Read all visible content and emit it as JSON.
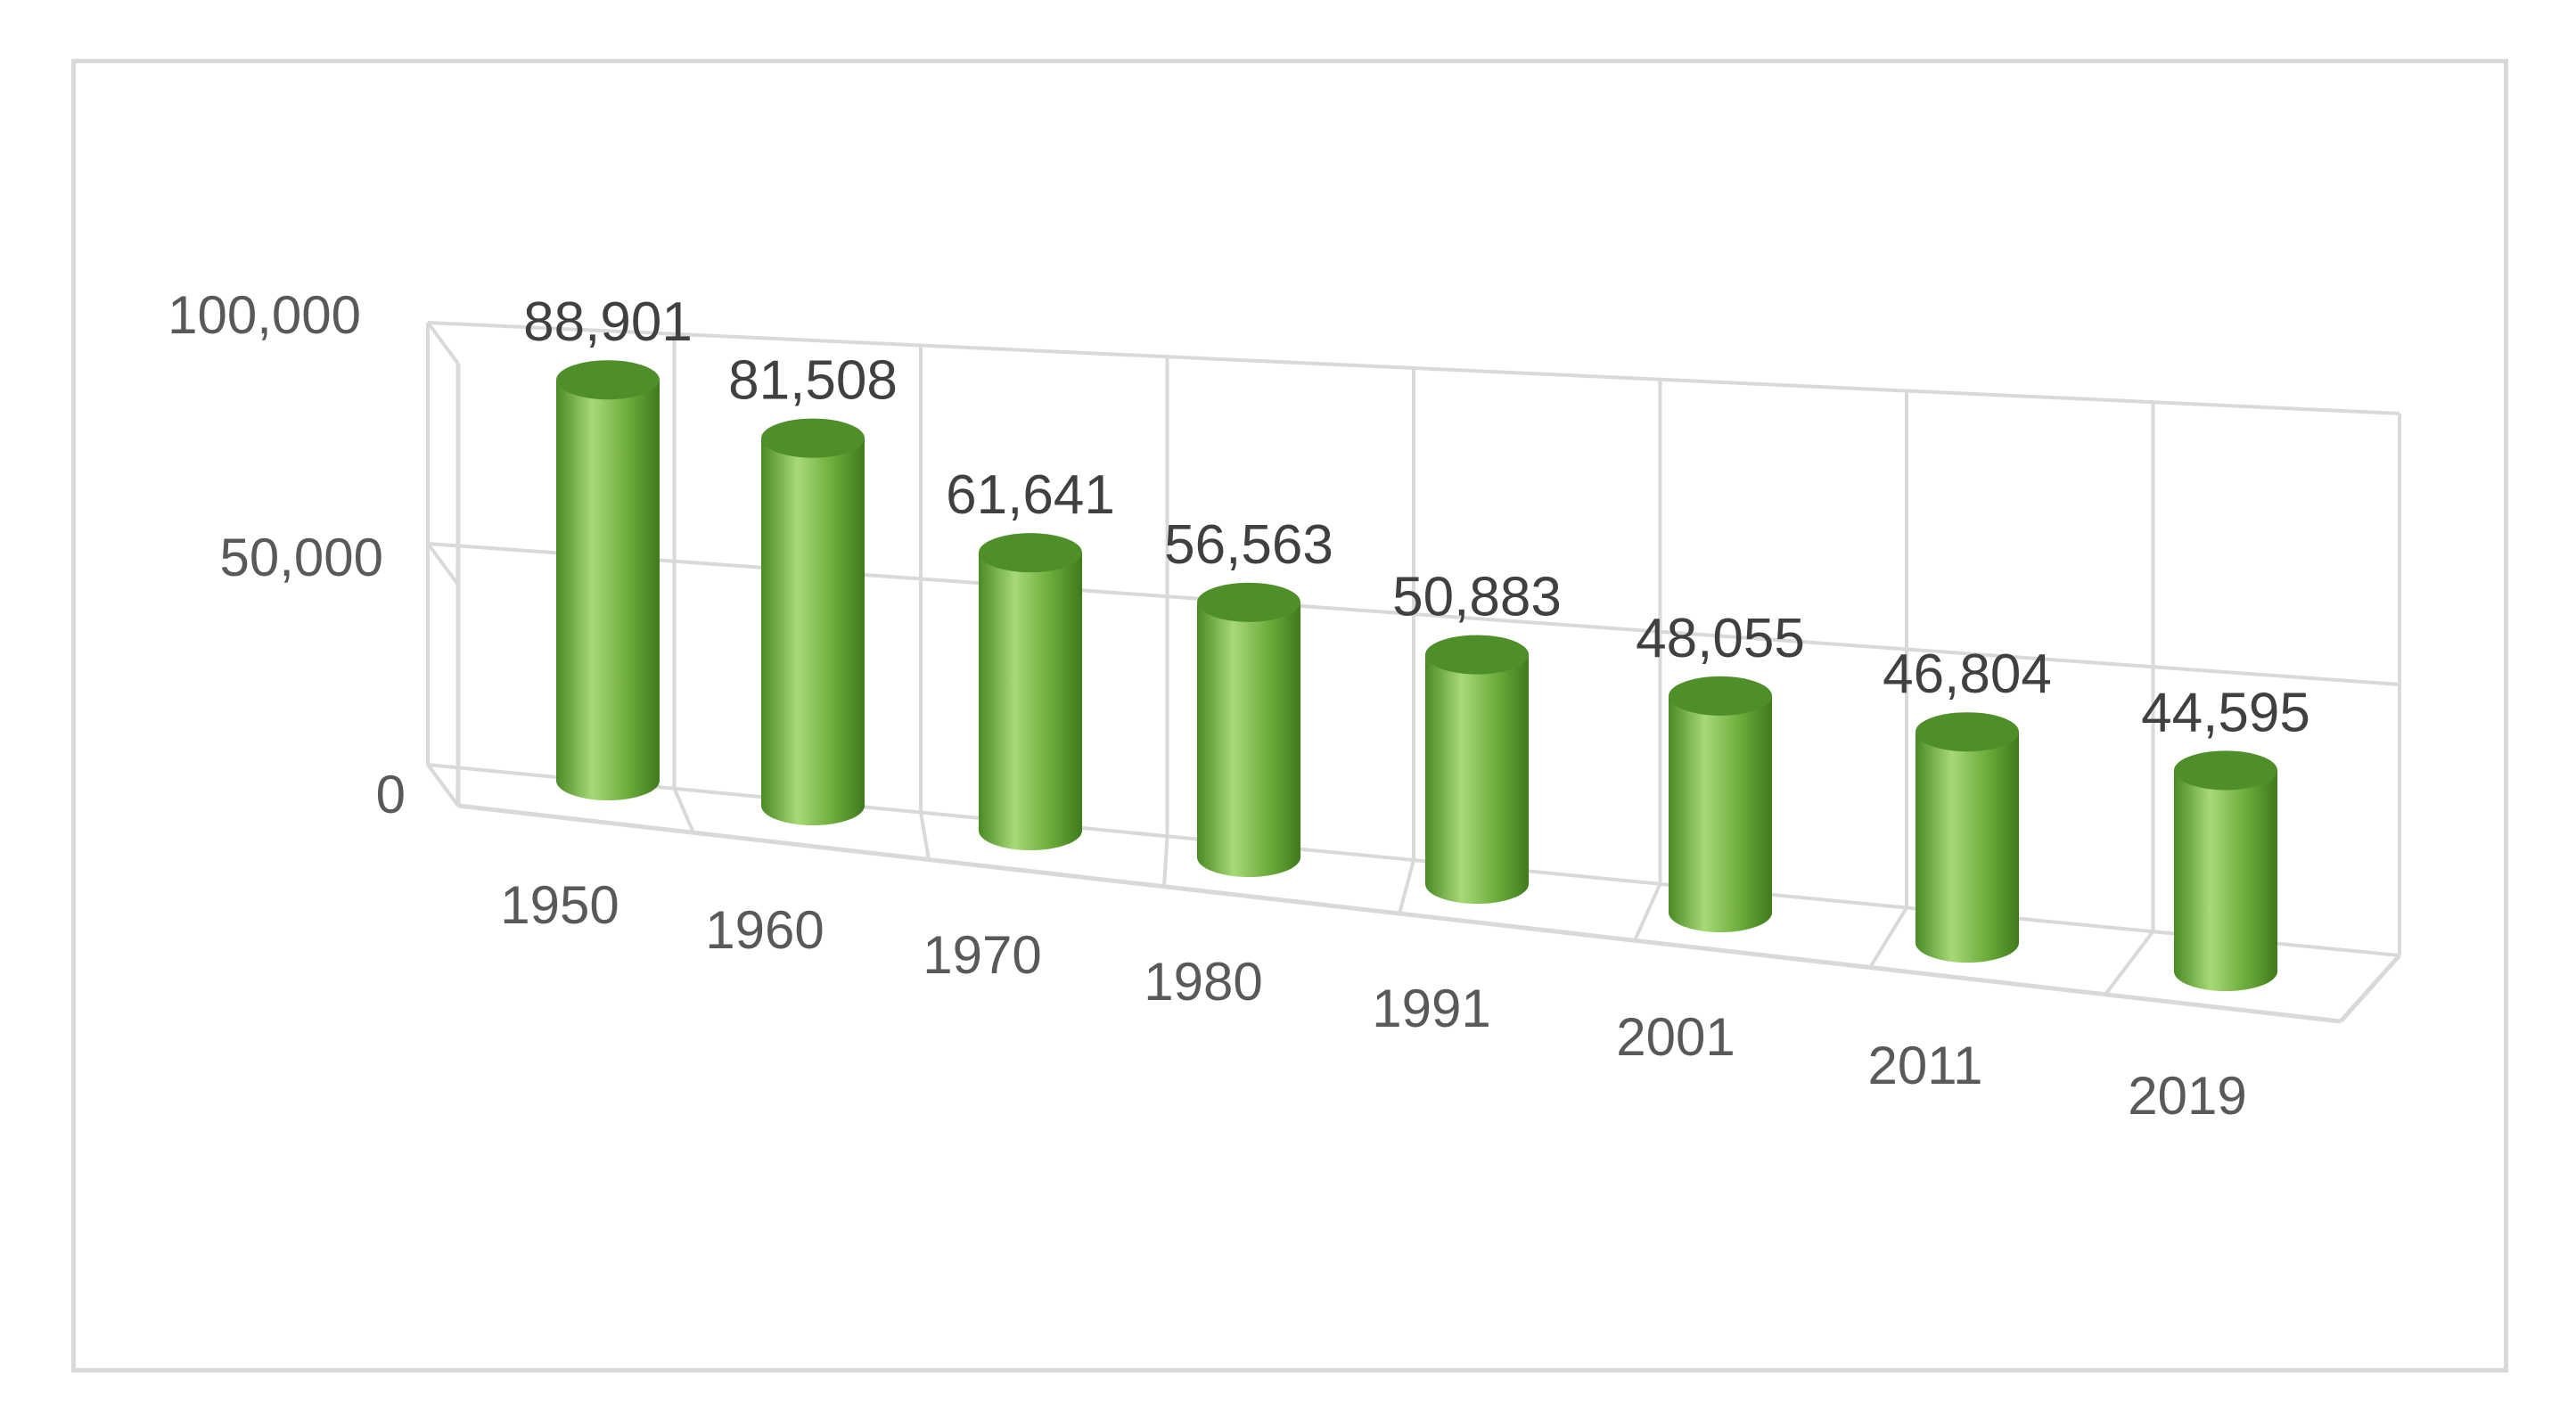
{
  "chart_data": {
    "type": "bar",
    "style": "3d-cylinder",
    "categories": [
      "1950",
      "1960",
      "1970",
      "1980",
      "1991",
      "2001",
      "2011",
      "2019"
    ],
    "values": [
      88901,
      81508,
      61641,
      56563,
      50883,
      48055,
      46804,
      44595
    ],
    "data_labels": [
      "88,901",
      "81,508",
      "61,641",
      "56,563",
      "50,883",
      "48,055",
      "46,804",
      "44,595"
    ],
    "y_ticks": [
      0,
      50000,
      100000
    ],
    "y_tick_labels": [
      "0",
      "50,000",
      "100,000"
    ],
    "ylim": [
      0,
      100000
    ],
    "title": "",
    "xlabel": "",
    "ylabel": "",
    "grid": true,
    "legend": "none",
    "colors": {
      "bar": "#6aab3a",
      "bar_light": "#a7d977",
      "bar_dark": "#3f7a1c",
      "bar_top": "#4f8f2a",
      "grid": "#d9d9d9",
      "frame": "#d9d9d9",
      "tick_text": "#595959",
      "label_text": "#404040"
    }
  }
}
